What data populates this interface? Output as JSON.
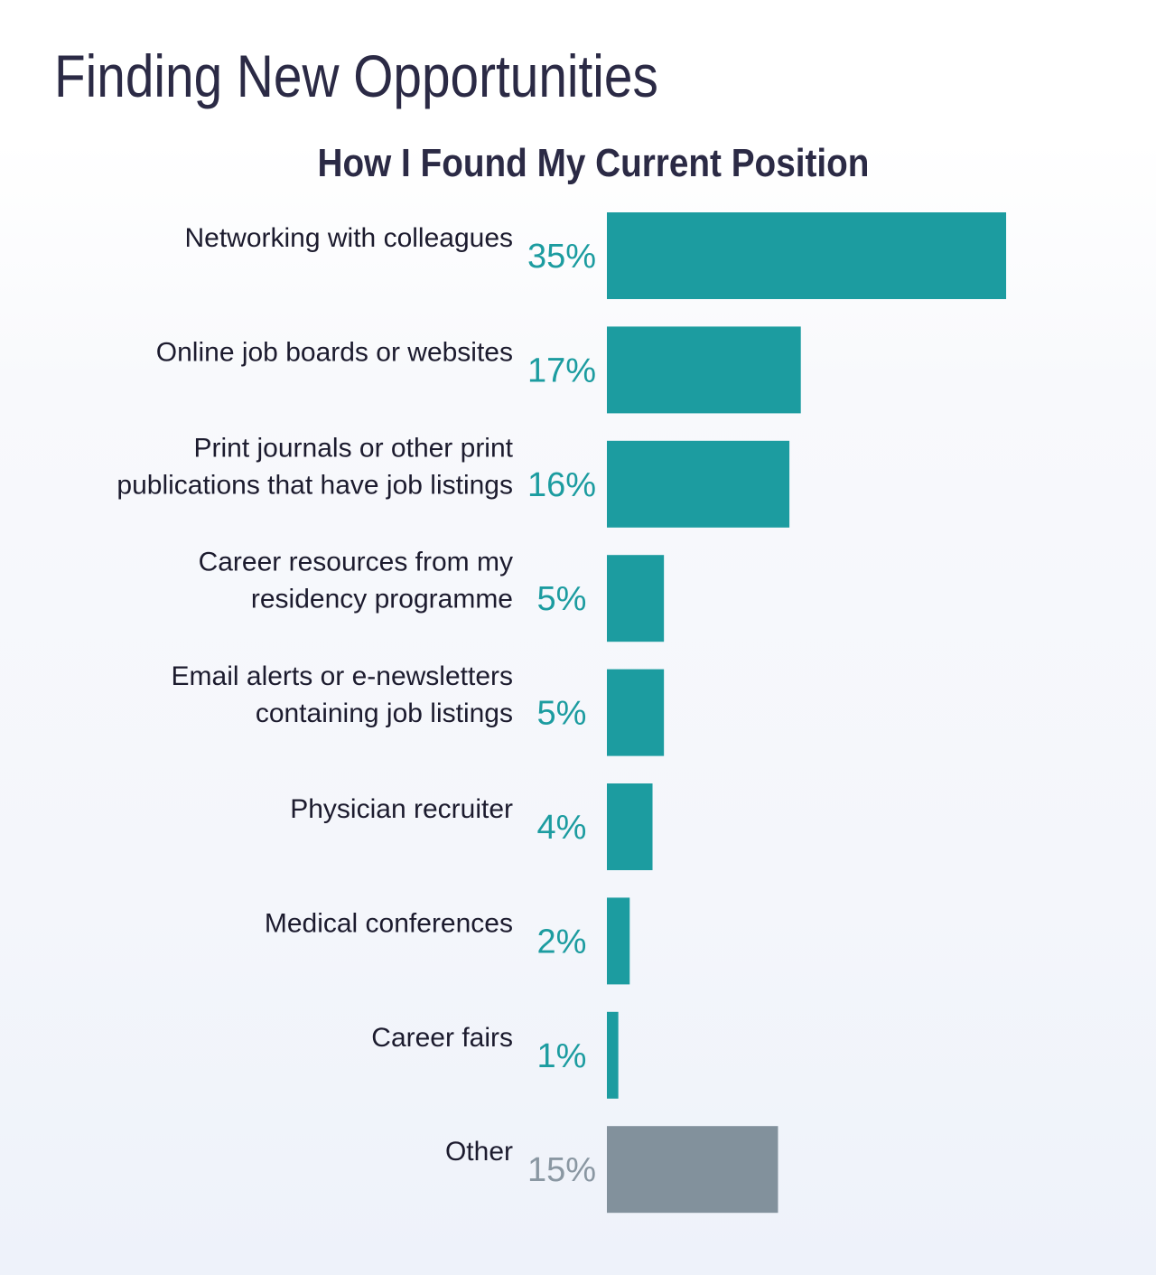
{
  "title": "Finding New Opportunities",
  "chart_data": {
    "type": "bar",
    "orientation": "horizontal",
    "title": "How I Found My Current Position",
    "xlabel": "",
    "ylabel": "",
    "grid": false,
    "categories": [
      [
        "Networking with colleagues"
      ],
      [
        "Online job boards or websites"
      ],
      [
        "Print journals or other print",
        "publications that have job listings"
      ],
      [
        "Career resources from my",
        "residency programme"
      ],
      [
        "Email alerts or e-newsletters",
        "containing job listings"
      ],
      [
        "Physician recruiter"
      ],
      [
        "Medical conferences"
      ],
      [
        "Career fairs"
      ],
      [
        "Other"
      ]
    ],
    "values": [
      35,
      17,
      16,
      5,
      5,
      4,
      2,
      1,
      15
    ],
    "value_labels": [
      "35%",
      "17%",
      "16%",
      "5%",
      "5%",
      "4%",
      "2%",
      "1%",
      "15%"
    ],
    "bar_colors": [
      "#1c9ca0",
      "#1c9ca0",
      "#1c9ca0",
      "#1c9ca0",
      "#1c9ca0",
      "#1c9ca0",
      "#1c9ca0",
      "#1c9ca0",
      "#82919c"
    ],
    "value_label_colors": [
      "#1c9ca0",
      "#1c9ca0",
      "#1c9ca0",
      "#1c9ca0",
      "#1c9ca0",
      "#1c9ca0",
      "#1c9ca0",
      "#1c9ca0",
      "#8a97a2"
    ]
  }
}
